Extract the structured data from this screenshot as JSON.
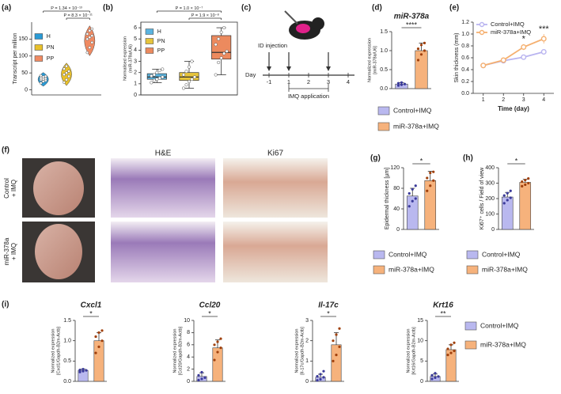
{
  "panel_labels": [
    "(a)",
    "(b)",
    "(c)",
    "(d)",
    "(e)",
    "(f)",
    "(g)",
    "(h)",
    "(i)"
  ],
  "diagram": {
    "injection": "ID injection",
    "day": "Day",
    "days": [
      "-1",
      "1",
      "2",
      "3",
      "4"
    ],
    "application": "IMQ application"
  },
  "images": {
    "columns": [
      "H&E",
      "Ki67"
    ],
    "rows": [
      [
        "Control",
        "+ IMQ"
      ],
      [
        "miR-378a",
        "+ IMQ"
      ]
    ]
  },
  "chart_data": [
    {
      "type": "violin",
      "ylabel": [
        "Transcript per million"
      ],
      "ylim": [
        -15,
        200
      ],
      "yticks": [
        0,
        50,
        100,
        150
      ],
      "annotations": [
        "P = 1.34 × 10⁻¹³",
        "P = 8.3 × 10⁻¹¹"
      ],
      "groups": [
        {
          "name": "H",
          "color": "#2a9bd6",
          "values": [
            20,
            25,
            28,
            30,
            32,
            33,
            35,
            38,
            40,
            42
          ]
        },
        {
          "name": "PN",
          "color": "#e8c02a",
          "values": [
            22,
            30,
            40,
            45,
            50,
            55,
            62,
            70
          ]
        },
        {
          "name": "PP",
          "color": "#ef8a62",
          "values": [
            110,
            125,
            140,
            150,
            155,
            160,
            165,
            175,
            180
          ]
        }
      ]
    },
    {
      "type": "box",
      "ylabel": [
        "Normalised expression",
        "(miR-378a/U6)"
      ],
      "ylim": [
        0,
        6.5
      ],
      "yticks": [
        0,
        1,
        2,
        3,
        4,
        5,
        6
      ],
      "annotations": [
        "P = 1.0 × 10⁻⁷",
        "P = 1.9 × 10⁻⁸"
      ],
      "groups": [
        {
          "name": "H",
          "color": "#5ab4e0",
          "min": 1.1,
          "q1": 1.4,
          "median": 1.6,
          "q3": 1.9,
          "max": 2.3,
          "points": [
            1.1,
            1.3,
            1.4,
            1.5,
            1.6,
            1.7,
            1.8,
            2.0,
            2.2,
            2.3
          ]
        },
        {
          "name": "PN",
          "color": "#e6c43c",
          "min": 0.6,
          "q1": 1.3,
          "median": 1.6,
          "q3": 2.0,
          "max": 3.0,
          "points": [
            0.6,
            0.9,
            1.2,
            1.4,
            1.6,
            1.8,
            2.1,
            2.5,
            3.0
          ]
        },
        {
          "name": "PP",
          "color": "#ec8a5e",
          "min": 1.8,
          "q1": 3.2,
          "median": 3.8,
          "q3": 5.3,
          "max": 6.0,
          "points": [
            1.8,
            2.9,
            3.3,
            3.7,
            3.9,
            4.5,
            5.0,
            5.6,
            6.0
          ]
        }
      ]
    },
    {
      "type": "bar",
      "title": "miR-378a",
      "ylabel": [
        "Normalized expression",
        "[miR-378a/U6]"
      ],
      "ylim": [
        0,
        1.5
      ],
      "yticks": [
        {
          "value": 0,
          "label": "0.0"
        },
        {
          "value": 0.5,
          "label": "0.5"
        },
        {
          "value": 1,
          "label": "1.0"
        },
        {
          "value": 1.5,
          "label": "1.5"
        }
      ],
      "significance": "****",
      "series": [
        {
          "name": "Control+IMQ",
          "color": "#b9b8ef",
          "point_color": "#3a3a9a",
          "values": [
            0.12
          ],
          "errors": [
            0.04
          ],
          "points": [
            0.08,
            0.1,
            0.12,
            0.14,
            0.16
          ]
        },
        {
          "name": "miR-378a+IMQ",
          "color": "#f6b27c",
          "point_color": "#a0400c",
          "values": [
            1.0
          ],
          "errors": [
            0.2
          ],
          "points": [
            0.75,
            0.9,
            1.0,
            1.05,
            1.15,
            1.2
          ]
        }
      ]
    },
    {
      "type": "line",
      "ylabel": [
        "Skin thickness (mm)"
      ],
      "xlabel": "Time (day)",
      "x": [
        1,
        2,
        3,
        4
      ],
      "xlim": [
        0.5,
        4.5
      ],
      "xticks": [
        1,
        2,
        3,
        4
      ],
      "ylim": [
        0,
        1.2
      ],
      "yticks": [
        {
          "value": 0,
          "label": "0.0"
        },
        {
          "value": 0.2,
          "label": "0.2"
        },
        {
          "value": 0.4,
          "label": "0.4"
        },
        {
          "value": 0.6,
          "label": "0.6"
        },
        {
          "value": 0.8,
          "label": "0.8"
        },
        {
          "value": 1,
          "label": "1.0"
        },
        {
          "value": 1.2,
          "label": "1.2"
        }
      ],
      "annotations": [
        {
          "x": 3,
          "text": "*"
        },
        {
          "x": 4,
          "text": "***"
        }
      ],
      "series": [
        {
          "name": "Control+IMQ",
          "color": "#b9b4f0",
          "values": [
            0.47,
            0.55,
            0.61,
            0.7
          ],
          "errors": [
            0.02,
            0.02,
            0.02,
            0.04
          ]
        },
        {
          "name": "miR-378a+IMQ",
          "color": "#f5b070",
          "values": [
            0.47,
            0.56,
            0.78,
            0.92
          ],
          "errors": [
            0.02,
            0.03,
            0.05,
            0.08
          ]
        }
      ]
    },
    {
      "type": "bar",
      "ylabel": [
        "Epidermal thickness [µm]"
      ],
      "ylim": [
        0,
        120
      ],
      "yticks": [
        0,
        40,
        80,
        120
      ],
      "significance": "*",
      "series": [
        {
          "name": "Control+IMQ",
          "color": "#b9b8ef",
          "point_color": "#3a3a9a",
          "values": [
            65
          ],
          "errors": [
            15
          ],
          "points": [
            45,
            55,
            60,
            70,
            78,
            85
          ]
        },
        {
          "name": "miR-378a+IMQ",
          "color": "#f6b27c",
          "point_color": "#a0400c",
          "values": [
            95
          ],
          "errors": [
            18
          ],
          "points": [
            75,
            85,
            95,
            100,
            110,
            112
          ]
        }
      ]
    },
    {
      "type": "bar",
      "ylabel": [
        "Ki67⁺ cells / Field of view"
      ],
      "ylim": [
        0,
        400
      ],
      "yticks": [
        0,
        100,
        200,
        300,
        400
      ],
      "significance": "*",
      "series": [
        {
          "name": "Control+IMQ",
          "color": "#b9b8ef",
          "point_color": "#3a3a9a",
          "values": [
            210
          ],
          "errors": [
            30
          ],
          "points": [
            170,
            190,
            205,
            220,
            235,
            250
          ]
        },
        {
          "name": "miR-378a+IMQ",
          "color": "#f6b27c",
          "point_color": "#a0400c",
          "values": [
            305
          ],
          "errors": [
            20
          ],
          "points": [
            280,
            290,
            300,
            310,
            320,
            330
          ]
        }
      ]
    },
    {
      "type": "bar",
      "title": "Cxcl1",
      "ylabel": [
        "Normalized expression",
        "[Cxcl1/Gapdh-B2m-Actb]"
      ],
      "ylim": [
        0,
        1.5
      ],
      "yticks": [
        {
          "value": 0,
          "label": "0.0"
        },
        {
          "value": 0.5,
          "label": "0.5"
        },
        {
          "value": 1,
          "label": "1.0"
        },
        {
          "value": 1.5,
          "label": "1.5"
        }
      ],
      "significance": "*",
      "series": [
        {
          "name": "Control+IMQ",
          "color": "#b9b8ef",
          "point_color": "#3a3a9a",
          "values": [
            0.27
          ],
          "errors": [
            0.03
          ],
          "points": [
            0.23,
            0.25,
            0.27,
            0.28,
            0.3
          ]
        },
        {
          "name": "miR-378a+IMQ",
          "color": "#f6b27c",
          "point_color": "#a0400c",
          "values": [
            1.0
          ],
          "errors": [
            0.2
          ],
          "points": [
            0.7,
            0.85,
            1.0,
            1.1,
            1.2,
            1.25
          ]
        }
      ]
    },
    {
      "type": "bar",
      "title": "Ccl20",
      "ylabel": [
        "Normalized expression",
        "[Ccl20/Gapdh-B2m-Actb]"
      ],
      "ylim": [
        0,
        10
      ],
      "yticks": [
        0,
        2,
        4,
        6,
        8,
        10
      ],
      "significance": "*",
      "series": [
        {
          "name": "Control+IMQ",
          "color": "#b9b8ef",
          "point_color": "#3a3a9a",
          "values": [
            0.8
          ],
          "errors": [
            0.6
          ],
          "points": [
            0.2,
            0.4,
            0.6,
            1.0,
            1.5
          ]
        },
        {
          "name": "miR-378a+IMQ",
          "color": "#f6b27c",
          "point_color": "#a0400c",
          "values": [
            5.5
          ],
          "errors": [
            1.3
          ],
          "points": [
            3.5,
            4.8,
            5.5,
            6.0,
            6.5,
            7.0
          ]
        }
      ]
    },
    {
      "type": "bar",
      "title": "Il-17c",
      "ylabel": [
        "Normalized expression",
        "[Il-17c/Gapdh-B2m-Actb]"
      ],
      "ylim": [
        0,
        3
      ],
      "yticks": [
        0,
        1,
        2,
        3
      ],
      "significance": "*",
      "series": [
        {
          "name": "Control+IMQ",
          "color": "#b9b8ef",
          "point_color": "#3a3a9a",
          "values": [
            0.2
          ],
          "errors": [
            0.15
          ],
          "points": [
            0.05,
            0.1,
            0.2,
            0.25,
            0.35,
            0.5
          ]
        },
        {
          "name": "miR-378a+IMQ",
          "color": "#f6b27c",
          "point_color": "#a0400c",
          "values": [
            1.8
          ],
          "errors": [
            0.6
          ],
          "points": [
            1.0,
            1.3,
            1.7,
            2.0,
            2.3,
            2.6
          ]
        }
      ]
    },
    {
      "type": "bar",
      "title": "Krt16",
      "ylabel": [
        "Normalized expression",
        "[Krt16/Gapdh-B2m-Actb]"
      ],
      "ylim": [
        0,
        15
      ],
      "yticks": [
        0,
        5,
        10,
        15
      ],
      "significance": "**",
      "series": [
        {
          "name": "Control+IMQ",
          "color": "#b9b8ef",
          "point_color": "#3a3a9a",
          "values": [
            1.2
          ],
          "errors": [
            0.6
          ],
          "points": [
            0.6,
            0.9,
            1.2,
            1.5,
            2.0
          ]
        },
        {
          "name": "miR-378a+IMQ",
          "color": "#f6b27c",
          "point_color": "#a0400c",
          "values": [
            7.8
          ],
          "errors": [
            1.2
          ],
          "points": [
            6.5,
            7.0,
            7.5,
            8.0,
            9.0,
            9.5
          ]
        }
      ]
    }
  ]
}
